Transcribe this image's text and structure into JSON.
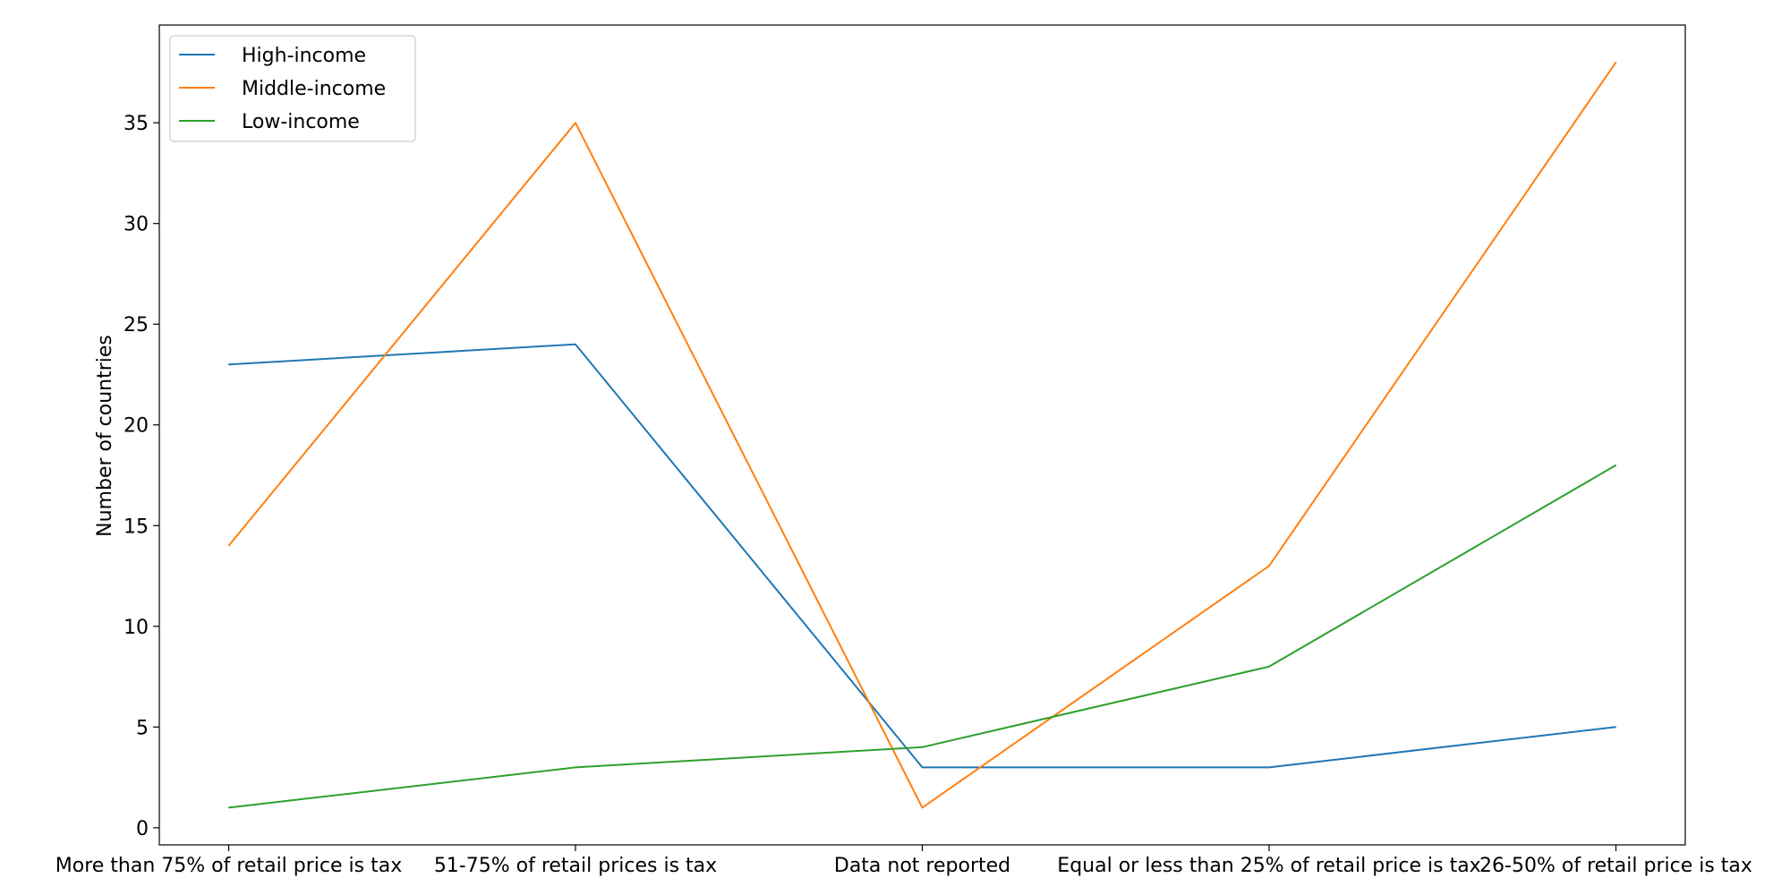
{
  "chart_data": {
    "type": "line",
    "categories": [
      "More than 75% of retail price is tax",
      "51-75% of retail prices is tax",
      "Data not reported",
      "Equal or less than 25% of retail price is tax",
      "26-50% of retail price is tax"
    ],
    "series": [
      {
        "name": "High-income",
        "color": "#1f77b4",
        "values": [
          23,
          24,
          3,
          3,
          5
        ]
      },
      {
        "name": "Middle-income",
        "color": "#ff7f0e",
        "values": [
          14,
          35,
          1,
          13,
          38
        ]
      },
      {
        "name": "Low-income",
        "color": "#2ca02c",
        "values": [
          1,
          3,
          4,
          8,
          18
        ]
      }
    ],
    "title": "",
    "xlabel": "",
    "ylabel": "Number of countries",
    "ylim": [
      -0.85,
      39.85
    ],
    "yticks": [
      0,
      5,
      10,
      15,
      20,
      25,
      30,
      35
    ],
    "grid": false,
    "legend": "top-left"
  }
}
